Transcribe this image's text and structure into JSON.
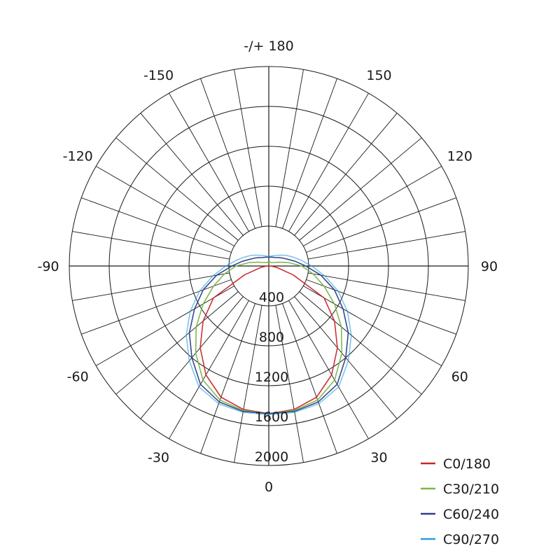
{
  "chart_data": {
    "type": "polar",
    "angle_tick_labels": [
      {
        "angle": 180,
        "label": "-/+ 180"
      },
      {
        "angle": 150,
        "label": "150"
      },
      {
        "angle": 120,
        "label": "120"
      },
      {
        "angle": 90,
        "label": "90"
      },
      {
        "angle": 60,
        "label": "60"
      },
      {
        "angle": 30,
        "label": "30"
      },
      {
        "angle": 0,
        "label": "0"
      },
      {
        "angle": -30,
        "label": "-30"
      },
      {
        "angle": -60,
        "label": "-60"
      },
      {
        "angle": -90,
        "label": "-90"
      },
      {
        "angle": -120,
        "label": "-120"
      },
      {
        "angle": -150,
        "label": "-150"
      }
    ],
    "radial_ticks": [
      0,
      400,
      800,
      1200,
      1600,
      2000
    ],
    "radial_range": [
      0,
      2000
    ],
    "angle_grid_step": 10,
    "grid": true,
    "zero_direction": "bottom",
    "legend_position": "bottom-right",
    "gamma": [
      0,
      10,
      20,
      30,
      40,
      50,
      60,
      70,
      80,
      90,
      100,
      110,
      120,
      130,
      140,
      150,
      160,
      170,
      180
    ],
    "series": [
      {
        "name": "C0/180",
        "color": "#c8282a",
        "values": [
          1480,
          1460,
          1400,
          1260,
          1070,
          860,
          640,
          260,
          80,
          20,
          0,
          0,
          0,
          0,
          0,
          0,
          0,
          0,
          0
        ]
      },
      {
        "name": "C30/210",
        "color": "#7ab648",
        "values": [
          1480,
          1470,
          1430,
          1320,
          1140,
          950,
          760,
          590,
          450,
          330,
          200,
          110,
          70,
          55,
          45,
          40,
          40,
          40,
          40
        ]
      },
      {
        "name": "C60/240",
        "color": "#2e3f8a",
        "values": [
          1480,
          1480,
          1450,
          1370,
          1200,
          1040,
          860,
          700,
          530,
          370,
          270,
          200,
          160,
          130,
          110,
          100,
          95,
          90,
          90
        ]
      },
      {
        "name": "C90/270",
        "color": "#2a9fd6",
        "values": [
          1490,
          1490,
          1470,
          1400,
          1240,
          1080,
          910,
          740,
          570,
          430,
          330,
          260,
          210,
          170,
          140,
          120,
          110,
          100,
          100
        ]
      }
    ]
  }
}
